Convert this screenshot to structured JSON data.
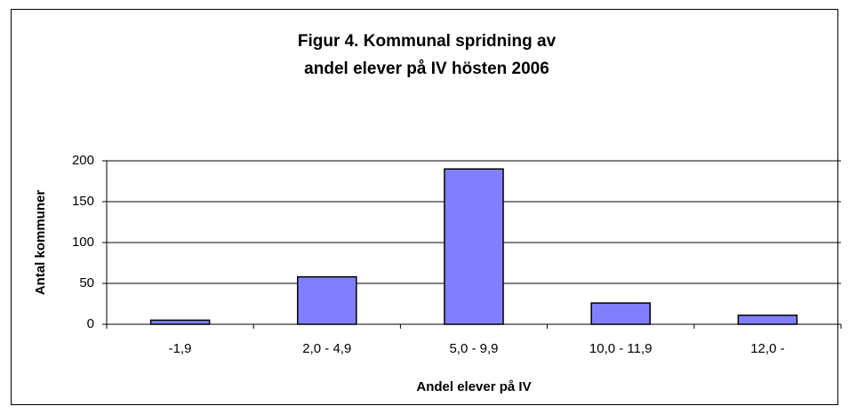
{
  "chart_data": {
    "type": "bar",
    "title": [
      "Figur 4. Kommunal spridning av",
      "andel elever på IV hösten 2006"
    ],
    "xlabel": "Andel elever på IV",
    "ylabel": "Antal kommuner",
    "categories": [
      "-1,9",
      "2,0 - 4,9",
      "5,0 - 9,9",
      "10,0 - 11,9",
      "12,0 -"
    ],
    "values": [
      5,
      58,
      190,
      26,
      11
    ],
    "color": "#8080ff",
    "ylim": [
      0,
      200
    ],
    "yticks": [
      0,
      50,
      100,
      150,
      200
    ],
    "grid": true
  }
}
